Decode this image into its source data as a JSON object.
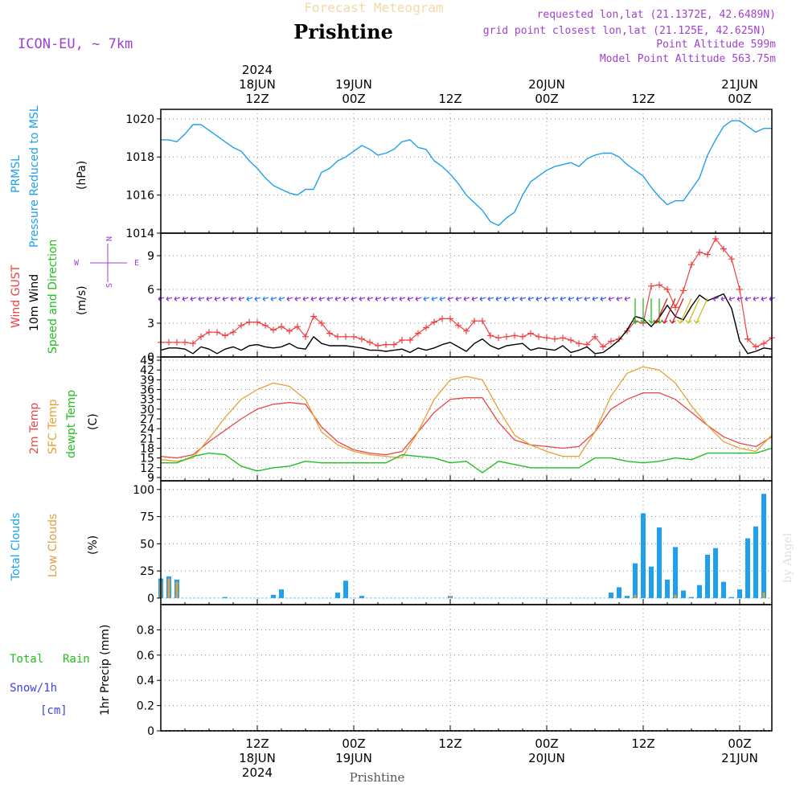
{
  "header": {
    "product": "Forecast Meteogram",
    "location": "Prishtine",
    "model": "ICON-EU, ~ 7km",
    "requested": "requested lon,lat (21.1372E, 42.6489N)",
    "grid_point": "grid point closest lon,lat (21.125E, 42.625N)",
    "point_altitude": "Point Altitude 599m",
    "model_altitude": "Model Point Altitude 563.75m"
  },
  "footer": {
    "location": "Prishtine",
    "credit": "by Angel"
  },
  "colors": {
    "pressure": "#1ea0f0",
    "gust": "#f04040",
    "wind": "#000000",
    "windarrow_green": "#20c020",
    "purple": "#9030d0",
    "t2m": "#e84848",
    "tsfc": "#e8a030",
    "dew": "#20c020",
    "total_clouds": "#1ea0f0",
    "low_clouds": "#e0a040",
    "rain": "#20c020",
    "snow": "#4040e0"
  },
  "time_axis": {
    "top_labels": [
      {
        "t": 12,
        "lines": [
          "2024",
          "18JUN",
          "12Z"
        ]
      },
      {
        "t": 24,
        "lines": [
          "19JUN",
          "00Z"
        ]
      },
      {
        "t": 36,
        "lines": [
          "12Z"
        ]
      },
      {
        "t": 48,
        "lines": [
          "20JUN",
          "00Z"
        ]
      },
      {
        "t": 60,
        "lines": [
          "12Z"
        ]
      },
      {
        "t": 72,
        "lines": [
          "21JUN",
          "00Z"
        ]
      }
    ],
    "bottom_labels": [
      {
        "t": 12,
        "lines": [
          "12Z",
          "18JUN",
          "2024"
        ]
      },
      {
        "t": 24,
        "lines": [
          "00Z",
          "19JUN"
        ]
      },
      {
        "t": 36,
        "lines": [
          "12Z"
        ]
      },
      {
        "t": 48,
        "lines": [
          "00Z",
          "20JUN"
        ]
      },
      {
        "t": 60,
        "lines": [
          "12Z"
        ]
      },
      {
        "t": 72,
        "lines": [
          "00Z",
          "21JUN"
        ]
      }
    ]
  },
  "panels": {
    "pressure": {
      "labels": [
        "PRMSL",
        "Pressure Reduced to MSL"
      ],
      "unit": "(hPa)",
      "ticks": [
        "1014",
        "1016",
        "1018",
        "1020"
      ]
    },
    "wind": {
      "labels": [
        "Wind GUST",
        "10m Wind",
        "Speed and Direction"
      ],
      "unit": "(m/s)",
      "ticks": [
        "0",
        "3",
        "6",
        "9"
      ],
      "compass": {
        "n": "N",
        "s": "S",
        "e": "E",
        "w": "W"
      }
    },
    "temp": {
      "labels": [
        "2m Temp",
        "SFC Temp",
        "dewpt Temp"
      ],
      "unit": "(C)",
      "ticks": [
        "9",
        "12",
        "15",
        "18",
        "21",
        "24",
        "27",
        "30",
        "33",
        "36",
        "39",
        "42",
        "45"
      ]
    },
    "clouds": {
      "labels": [
        "Total Clouds",
        "Low Clouds"
      ],
      "unit": "(%)",
      "ticks": [
        "0",
        "25",
        "50",
        "75",
        "100"
      ]
    },
    "precip": {
      "labels": [
        "Total",
        "Rain",
        "Snow/1h",
        "[cm]"
      ],
      "unit": "1hr Precip (mm)",
      "ticks": [
        "0",
        "0.2",
        "0.4",
        "0.6",
        "0.8"
      ]
    }
  },
  "chart_data": [
    {
      "type": "line",
      "title": "PRMSL Pressure Reduced to MSL",
      "ylabel": "(hPa)",
      "ylim": [
        1014,
        1020.5
      ],
      "series": [
        {
          "name": "PRMSL",
          "x": [
            0,
            1,
            2,
            3,
            4,
            5,
            6,
            7,
            8,
            9,
            10,
            11,
            12,
            13,
            14,
            15,
            16,
            17,
            18,
            19,
            20,
            21,
            22,
            23,
            24,
            25,
            26,
            27,
            28,
            29,
            30,
            31,
            32,
            33,
            34,
            35,
            36,
            37,
            38,
            39,
            40,
            41,
            42,
            43,
            44,
            45,
            46,
            47,
            48,
            49,
            50,
            51,
            52,
            53,
            54,
            55,
            56,
            57,
            58,
            59,
            60,
            61,
            62,
            63,
            64,
            65,
            66,
            67,
            68,
            69,
            70,
            71,
            72,
            73,
            74,
            75,
            76
          ],
          "values": [
            1018.9,
            1018.9,
            1018.8,
            1019.2,
            1019.7,
            1019.7,
            1019.4,
            1019.1,
            1018.8,
            1018.5,
            1018.3,
            1017.8,
            1017.4,
            1016.9,
            1016.5,
            1016.3,
            1016.1,
            1016.0,
            1016.3,
            1016.3,
            1017.2,
            1017.4,
            1017.8,
            1018.0,
            1018.3,
            1018.6,
            1018.4,
            1018.1,
            1018.2,
            1018.4,
            1018.8,
            1018.9,
            1018.5,
            1018.4,
            1017.8,
            1017.5,
            1017.1,
            1016.6,
            1016.0,
            1015.6,
            1015.2,
            1014.6,
            1014.4,
            1014.8,
            1015.1,
            1016.0,
            1016.7,
            1017.0,
            1017.3,
            1017.5,
            1017.6,
            1017.7,
            1017.5,
            1017.9,
            1018.1,
            1018.2,
            1018.2,
            1018.0,
            1017.6,
            1017.3,
            1017.0,
            1016.4,
            1015.9,
            1015.5,
            1015.7,
            1015.7,
            1016.3,
            1016.9,
            1018.1,
            1018.9,
            1019.6,
            1019.9,
            1019.9,
            1019.6,
            1019.3,
            1019.5,
            1019.5
          ]
        }
      ]
    },
    {
      "type": "line",
      "title": "Wind GUST / 10m Wind",
      "ylabel": "(m/s)",
      "ylim": [
        0,
        11
      ],
      "series": [
        {
          "name": "Wind GUST",
          "x": [
            0,
            1,
            2,
            3,
            4,
            5,
            6,
            7,
            8,
            9,
            10,
            11,
            12,
            13,
            14,
            15,
            16,
            17,
            18,
            19,
            20,
            21,
            22,
            23,
            24,
            25,
            26,
            27,
            28,
            29,
            30,
            31,
            32,
            33,
            34,
            35,
            36,
            37,
            38,
            39,
            40,
            41,
            42,
            43,
            44,
            45,
            46,
            47,
            48,
            49,
            50,
            51,
            52,
            53,
            54,
            55,
            56,
            57,
            58,
            59,
            60,
            61,
            62,
            63,
            64,
            65,
            66,
            67,
            68,
            69,
            70,
            71,
            72,
            73,
            74,
            75,
            76
          ],
          "values": [
            1.3,
            1.3,
            1.3,
            1.3,
            1.2,
            1.8,
            2.2,
            2.2,
            1.9,
            2.2,
            2.8,
            3.1,
            3.1,
            2.8,
            2.4,
            2.7,
            2.3,
            2.7,
            1.8,
            3.6,
            3.0,
            2.1,
            1.8,
            1.8,
            1.8,
            1.6,
            1.3,
            1.0,
            1.1,
            1.1,
            1.5,
            1.5,
            2.1,
            2.6,
            3.1,
            3.4,
            3.4,
            2.8,
            2.3,
            3.2,
            3.2,
            1.9,
            1.7,
            1.8,
            1.9,
            1.8,
            2.1,
            1.8,
            1.7,
            1.6,
            1.7,
            1.5,
            1.2,
            1.1,
            1.8,
            0.9,
            1.4,
            1.6,
            2.3,
            3.2,
            3.0,
            6.3,
            6.4,
            6.0,
            4.4,
            5.9,
            8.2,
            9.3,
            9.1,
            10.5,
            9.6,
            8.7,
            6.0,
            1.6,
            0.9,
            1.2,
            1.7
          ]
        },
        {
          "name": "10m Wind",
          "x": [
            0,
            1,
            2,
            3,
            4,
            5,
            6,
            7,
            8,
            9,
            10,
            11,
            12,
            13,
            14,
            15,
            16,
            17,
            18,
            19,
            20,
            21,
            22,
            23,
            24,
            25,
            26,
            27,
            28,
            29,
            30,
            31,
            32,
            33,
            34,
            35,
            36,
            37,
            38,
            39,
            40,
            41,
            42,
            43,
            44,
            45,
            46,
            47,
            48,
            49,
            50,
            51,
            52,
            53,
            54,
            55,
            56,
            57,
            58,
            59,
            60,
            61,
            62,
            63,
            64,
            65,
            66,
            67,
            68,
            69,
            70,
            71,
            72,
            73,
            74,
            75,
            76
          ],
          "values": [
            0.6,
            0.8,
            0.8,
            0.7,
            0.3,
            0.9,
            0.7,
            0.3,
            0.7,
            0.9,
            0.6,
            1.0,
            1.1,
            0.9,
            0.8,
            0.9,
            1.2,
            0.8,
            0.7,
            1.8,
            1.2,
            1.0,
            1.0,
            1.0,
            0.9,
            0.8,
            0.6,
            0.6,
            0.5,
            0.6,
            0.7,
            0.4,
            0.8,
            0.6,
            0.8,
            1.1,
            1.3,
            0.9,
            0.5,
            1.2,
            1.6,
            1.0,
            0.7,
            1.0,
            1.1,
            1.2,
            0.6,
            0.8,
            0.7,
            0.6,
            1.0,
            0.4,
            0.6,
            0.9,
            0.3,
            0.4,
            0.9,
            1.5,
            2.4,
            3.6,
            3.4,
            2.7,
            3.5,
            4.6,
            3.6,
            3.3,
            4.5,
            5.5,
            5.0,
            5.3,
            5.6,
            4.3,
            1.4,
            0.3,
            0.5,
            0.8,
            0.7
          ]
        }
      ]
    },
    {
      "type": "line",
      "title": "2m Temp / SFC Temp / dewpt Temp",
      "ylabel": "(C)",
      "ylim": [
        9,
        45
      ],
      "series": [
        {
          "name": "2m Temp",
          "x": [
            0,
            2,
            4,
            6,
            8,
            10,
            12,
            14,
            16,
            18,
            20,
            22,
            24,
            26,
            28,
            30,
            32,
            34,
            36,
            38,
            40,
            42,
            44,
            46,
            48,
            50,
            52,
            54,
            56,
            58,
            60,
            62,
            64,
            66,
            68,
            70,
            72,
            74,
            76
          ],
          "values": [
            15.5,
            15,
            16,
            20,
            23.5,
            27,
            30,
            31.5,
            32,
            31.5,
            24.5,
            20,
            17.5,
            16.5,
            16,
            17,
            23,
            29,
            33,
            33.5,
            33.5,
            26,
            20.5,
            19,
            18.5,
            18,
            18.5,
            23,
            30,
            33,
            35,
            35,
            33,
            29,
            25,
            21.5,
            19.5,
            18.5,
            21.5
          ]
        },
        {
          "name": "SFC Temp",
          "x": [
            0,
            2,
            4,
            6,
            8,
            10,
            12,
            14,
            16,
            18,
            20,
            22,
            24,
            26,
            28,
            30,
            32,
            34,
            36,
            38,
            40,
            42,
            44,
            46,
            48,
            50,
            52,
            54,
            56,
            58,
            60,
            62,
            64,
            66,
            68,
            70,
            72,
            74,
            76
          ],
          "values": [
            14.5,
            14,
            15,
            21,
            27.5,
            33,
            36,
            38,
            37,
            33,
            23,
            19,
            17,
            16,
            15.5,
            15,
            23,
            33,
            39,
            40,
            39,
            30,
            22,
            19,
            17,
            15.5,
            15.5,
            23,
            34,
            41,
            43,
            42,
            38,
            31,
            25,
            20,
            18,
            17,
            22
          ]
        },
        {
          "name": "dewpt Temp",
          "x": [
            0,
            2,
            4,
            6,
            8,
            10,
            12,
            14,
            16,
            18,
            20,
            22,
            24,
            26,
            28,
            30,
            32,
            34,
            36,
            38,
            40,
            42,
            44,
            46,
            48,
            50,
            52,
            54,
            56,
            58,
            60,
            62,
            64,
            66,
            68,
            70,
            72,
            74,
            76
          ],
          "values": [
            13.5,
            13.5,
            15.5,
            16.5,
            16,
            12.5,
            11,
            12,
            12.5,
            14,
            13.5,
            13.5,
            13.5,
            13.5,
            13.5,
            16,
            15.5,
            15,
            13.5,
            14,
            10.5,
            14,
            13,
            12,
            12,
            12,
            12,
            15,
            15,
            14,
            13.5,
            14,
            15,
            14.5,
            16.5,
            16.5,
            16.5,
            16.5,
            18
          ]
        }
      ]
    },
    {
      "type": "bar",
      "title": "Total Clouds / Low Clouds",
      "ylabel": "(%)",
      "ylim": [
        0,
        100
      ],
      "series": [
        {
          "name": "Total Clouds",
          "x": [
            0,
            1,
            2,
            8,
            14,
            15,
            22,
            23,
            25,
            36,
            56,
            57,
            58,
            59,
            60,
            61,
            62,
            63,
            64,
            65,
            66,
            67,
            68,
            69,
            70,
            71,
            72,
            73,
            74,
            75,
            76
          ],
          "values": [
            18,
            20,
            17,
            1,
            3,
            8,
            5,
            16,
            2,
            2,
            5,
            10,
            2,
            32,
            78,
            29,
            65,
            17,
            47,
            7,
            1,
            12,
            40,
            46,
            15,
            1,
            8,
            55,
            66,
            96,
            0
          ]
        },
        {
          "name": "Low Clouds",
          "x": [
            0,
            1,
            2,
            36,
            59,
            64,
            75
          ],
          "values": [
            16,
            18,
            15,
            2,
            3,
            3,
            5
          ]
        }
      ]
    },
    {
      "type": "bar",
      "title": "1hr Precip",
      "ylabel": "1hr Precip (mm)",
      "ylim": [
        0,
        1
      ],
      "series": [
        {
          "name": "Total Rain",
          "x": [],
          "values": []
        }
      ]
    }
  ]
}
